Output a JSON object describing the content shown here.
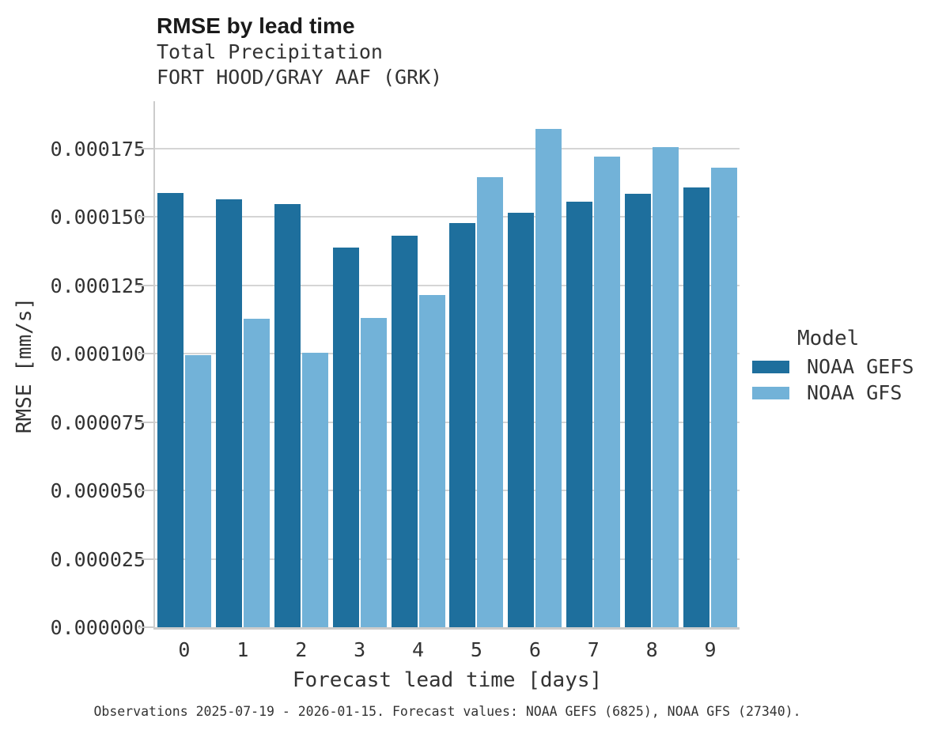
{
  "header": {
    "title": "RMSE by lead time",
    "subtitle_line1": "Total Precipitation",
    "subtitle_line2": "FORT HOOD/GRAY AAF (GRK)"
  },
  "chart_data": {
    "type": "bar",
    "title": "RMSE by lead time",
    "subtitle": "Total Precipitation",
    "station": "FORT HOOD/GRAY AAF (GRK)",
    "xlabel": "Forecast lead time [days]",
    "ylabel": "RMSE [mm/s]",
    "categories": [
      "0",
      "1",
      "2",
      "3",
      "4",
      "5",
      "6",
      "7",
      "8",
      "9"
    ],
    "series": [
      {
        "name": "NOAA GEFS",
        "color": "#1E6F9D",
        "values": [
          0.0001588,
          0.0001565,
          0.0001547,
          0.0001387,
          0.0001432,
          0.0001477,
          0.0001517,
          0.0001555,
          0.0001586,
          0.0001607
        ]
      },
      {
        "name": "NOAA GFS",
        "color": "#72B2D8",
        "values": [
          9.96e-05,
          0.0001128,
          0.0001004,
          0.0001132,
          0.0001215,
          0.0001647,
          0.0001822,
          0.000172,
          0.0001755,
          0.0001681
        ]
      }
    ],
    "ylim": [
      0,
      0.000175
    ],
    "ytick_step": 2.5e-05,
    "ytick_labels": [
      "0.000000",
      "0.000025",
      "0.000050",
      "0.000075",
      "0.000100",
      "0.000125",
      "0.000150",
      "0.000175"
    ],
    "grid": true,
    "legend_position": "right",
    "legend_title": "Model"
  },
  "legend": {
    "title": "Model",
    "items": [
      {
        "label": "NOAA GEFS",
        "color": "#1E6F9D"
      },
      {
        "label": "NOAA GFS",
        "color": "#72B2D8"
      }
    ]
  },
  "caption": "Observations 2025-07-19 - 2026-01-15. Forecast values: NOAA GEFS (6825), NOAA GFS (27340)."
}
